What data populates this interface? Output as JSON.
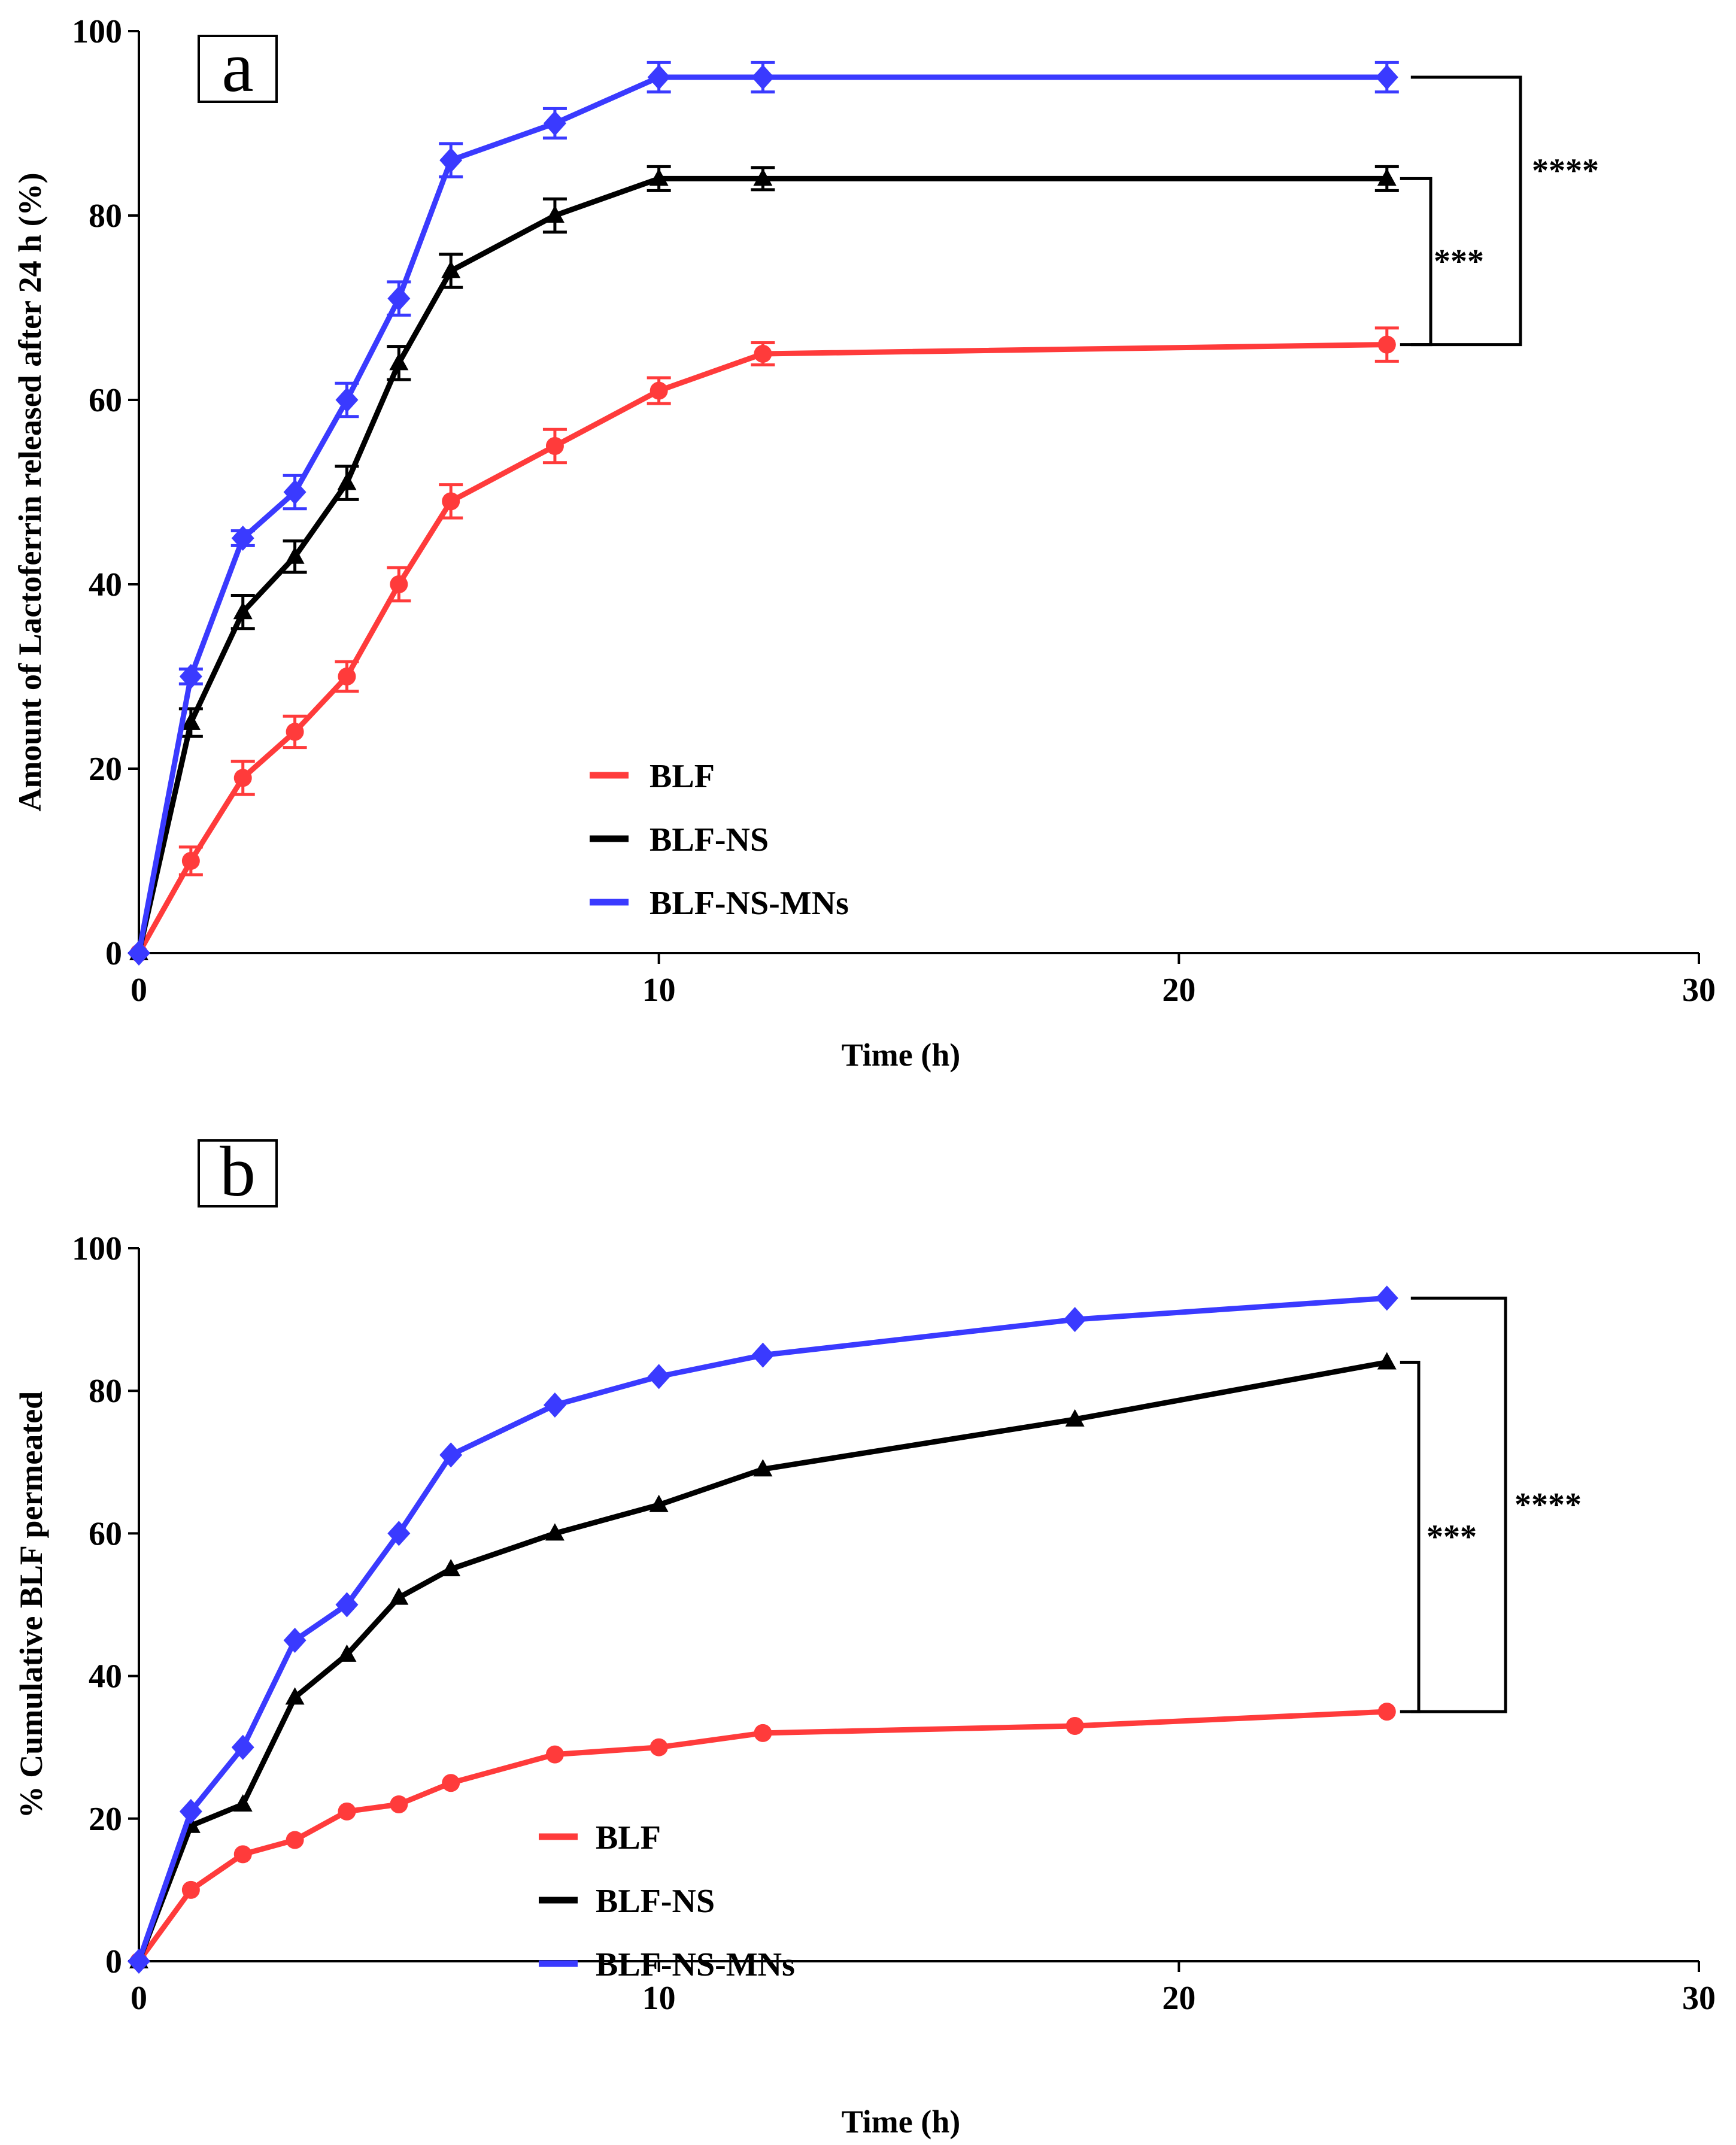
{
  "chart_data": [
    {
      "type": "line",
      "panel_label": "a",
      "xlabel": "Time (h)",
      "ylabel": "Amount of Lactoferrin released after 24 h (%)",
      "xlim": [
        0,
        30
      ],
      "ylim": [
        0,
        100
      ],
      "xticks": [
        0,
        10,
        20,
        30
      ],
      "yticks": [
        0,
        20,
        40,
        60,
        80,
        100
      ],
      "legend_position": "lower-center",
      "error_bars": true,
      "series": [
        {
          "name": "BLF",
          "color": "#ff3b3b",
          "marker": "circle",
          "x": [
            0,
            1,
            2,
            3,
            4,
            5,
            6,
            8,
            10,
            12,
            24
          ],
          "y": [
            0,
            10,
            19,
            24,
            30,
            40,
            49,
            55,
            61,
            65,
            66
          ],
          "err": [
            0,
            1.5,
            1.8,
            1.7,
            1.6,
            1.8,
            1.8,
            1.8,
            1.4,
            1.2,
            1.8
          ]
        },
        {
          "name": "BLF-NS",
          "color": "#000000",
          "marker": "triangle",
          "x": [
            0,
            1,
            2,
            3,
            4,
            5,
            6,
            8,
            10,
            12,
            24
          ],
          "y": [
            0,
            25,
            37,
            43,
            51,
            64,
            74,
            80,
            84,
            84,
            84
          ],
          "err": [
            0,
            1.5,
            1.8,
            1.7,
            1.8,
            1.8,
            1.8,
            1.8,
            1.3,
            1.2,
            1.3
          ]
        },
        {
          "name": "BLF-NS-MNs",
          "color": "#3a3aff",
          "marker": "diamond",
          "x": [
            0,
            1,
            2,
            3,
            4,
            5,
            6,
            8,
            10,
            12,
            24
          ],
          "y": [
            0,
            30,
            45,
            50,
            60,
            71,
            86,
            90,
            95,
            95,
            95
          ],
          "err": [
            0,
            0.8,
            0.8,
            1.8,
            1.8,
            1.8,
            1.8,
            1.6,
            1.6,
            1.6,
            1.6
          ]
        }
      ],
      "significance": [
        {
          "label": "***",
          "between": [
            "BLF",
            "BLF-NS"
          ],
          "y_low": 66,
          "y_high": 84
        },
        {
          "label": "****",
          "between": [
            "BLF",
            "BLF-NS-MNs"
          ],
          "y_low": 66,
          "y_high": 95
        }
      ]
    },
    {
      "type": "line",
      "panel_label": "b",
      "xlabel": "Time (h)",
      "ylabel": "% Cumulative BLF permeated",
      "xlim": [
        0,
        30
      ],
      "ylim": [
        0,
        100
      ],
      "xticks": [
        0,
        10,
        20,
        30
      ],
      "yticks": [
        0,
        20,
        40,
        60,
        80,
        100
      ],
      "legend_position": "lower-center",
      "error_bars": false,
      "series": [
        {
          "name": "BLF",
          "color": "#ff3b3b",
          "marker": "circle",
          "x": [
            0,
            1,
            2,
            3,
            4,
            5,
            6,
            8,
            10,
            12,
            18,
            24
          ],
          "y": [
            0,
            10,
            15,
            17,
            21,
            22,
            25,
            29,
            30,
            32,
            33,
            35
          ]
        },
        {
          "name": "BLF-NS",
          "color": "#000000",
          "marker": "triangle",
          "x": [
            0,
            1,
            2,
            3,
            4,
            5,
            6,
            8,
            10,
            12,
            18,
            24
          ],
          "y": [
            0,
            19,
            22,
            37,
            43,
            51,
            55,
            60,
            64,
            69,
            76,
            84
          ]
        },
        {
          "name": "BLF-NS-MNs",
          "color": "#3a3aff",
          "marker": "diamond",
          "x": [
            0,
            1,
            2,
            3,
            4,
            5,
            6,
            8,
            10,
            12,
            18,
            24
          ],
          "y": [
            0,
            21,
            30,
            45,
            50,
            60,
            71,
            78,
            82,
            85,
            90,
            93
          ]
        }
      ],
      "significance": [
        {
          "label": "***",
          "between": [
            "BLF",
            "BLF-NS"
          ],
          "y_low": 35,
          "y_high": 84
        },
        {
          "label": "****",
          "between": [
            "BLF",
            "BLF-NS-MNs"
          ],
          "y_low": 35,
          "y_high": 93
        }
      ]
    }
  ]
}
